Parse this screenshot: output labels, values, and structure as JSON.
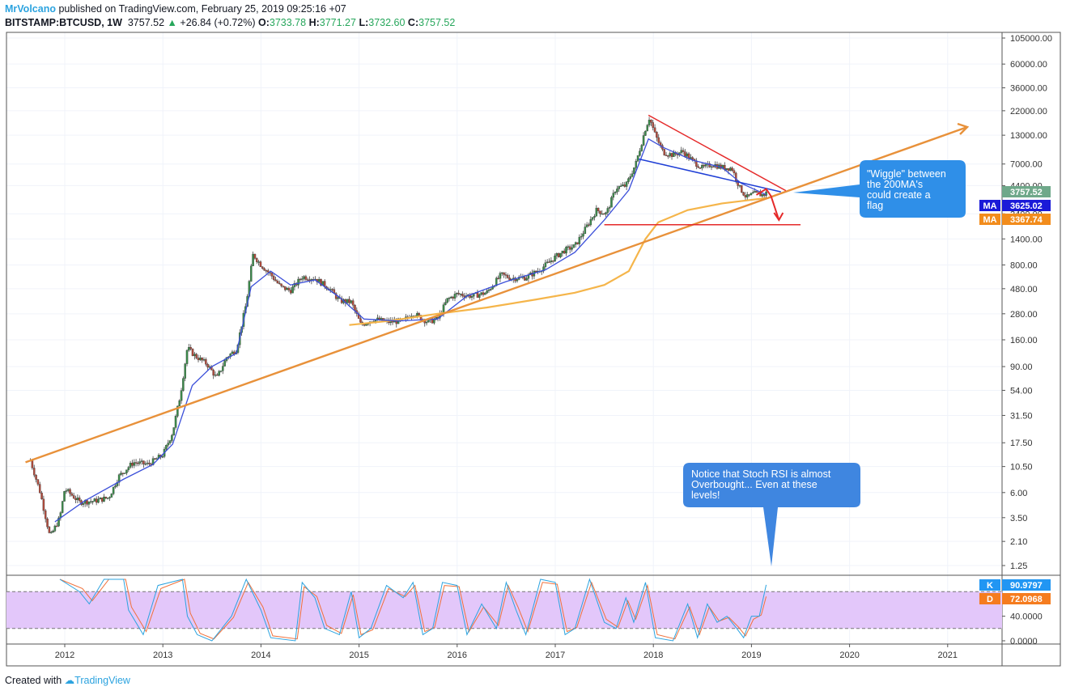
{
  "header": {
    "author": "MrVolcano",
    "published": " published on TradingView.com, February 25, 2019 09:25:16 +07",
    "symbol": "BITSTAMP:BTCUSD, 1W",
    "last": "3757.52",
    "change": "+26.84 (+0.72%)",
    "o_label": "O:",
    "o_value": "3733.78",
    "h_label": "H:",
    "h_value": "3771.27",
    "l_label": "L:",
    "l_value": "3732.60",
    "c_label": "C:",
    "c_value": "3757.52"
  },
  "footer": {
    "created_with": "Created with",
    "brand": "TradingView"
  },
  "colors": {
    "up_candle": "#3b8a4a",
    "down_candle": "#b04a3c",
    "ma_fast": "#3b4fd9",
    "ma_slow": "#f5b54a",
    "trendline": "#e8913a",
    "resistance": "#e52a2a",
    "support_blue": "#1f3fd6",
    "callout": "#2f8fe8",
    "stoch_band": "#e3c7fa",
    "stoch_k": "#2ca3df",
    "stoch_d": "#f0703a"
  },
  "price_tags": {
    "last": {
      "label": "",
      "value": "3757.52",
      "color": "#6fa88a"
    },
    "ma_fast": {
      "label": "MA",
      "value": "3625.02",
      "color": "#1a1ad8"
    },
    "ma_slow": {
      "label": "MA",
      "value": "3367.74",
      "color": "#f28c1c"
    }
  },
  "stoch_tags": {
    "k": {
      "label": "K",
      "value": "90.9797",
      "color": "#2196f3"
    },
    "d": {
      "label": "D",
      "value": "72.0968",
      "color": "#f57c1f"
    }
  },
  "annotations": {
    "wiggle": [
      "\"Wiggle\" between",
      "the 200MA's",
      "could create a",
      "flag"
    ],
    "stoch": [
      "Notice that Stoch RSI is almost",
      "Overbought... Even at these",
      "levels!"
    ]
  },
  "chart_data": [
    {
      "type": "candlestick",
      "title": "BITSTAMP:BTCUSD, 1W",
      "scale": "log",
      "y_ticks": [
        "105000.00",
        "60000.00",
        "36000.00",
        "22000.00",
        "13000.00",
        "7000.00",
        "4400.00",
        "2400.00",
        "1400.00",
        "800.00",
        "480.00",
        "280.00",
        "160.00",
        "90.00",
        "54.00",
        "31.50",
        "17.50",
        "10.50",
        "6.00",
        "3.50",
        "2.10",
        "1.25"
      ],
      "x_ticks": [
        "2012",
        "2013",
        "2014",
        "2015",
        "2016",
        "2017",
        "2018",
        "2019",
        "2020",
        "2021"
      ],
      "ylim": [
        1,
        120000
      ],
      "grid": true,
      "price_path": [
        {
          "x": 2011.65,
          "y": 12
        },
        {
          "x": 2011.75,
          "y": 6
        },
        {
          "x": 2011.85,
          "y": 2.3
        },
        {
          "x": 2011.95,
          "y": 3.5
        },
        {
          "x": 2012.0,
          "y": 6.5
        },
        {
          "x": 2012.15,
          "y": 4.9
        },
        {
          "x": 2012.3,
          "y": 5.0
        },
        {
          "x": 2012.45,
          "y": 5.4
        },
        {
          "x": 2012.55,
          "y": 8.5
        },
        {
          "x": 2012.7,
          "y": 11.5
        },
        {
          "x": 2012.85,
          "y": 11
        },
        {
          "x": 2013.0,
          "y": 13.5
        },
        {
          "x": 2013.1,
          "y": 22
        },
        {
          "x": 2013.18,
          "y": 50
        },
        {
          "x": 2013.25,
          "y": 135
        },
        {
          "x": 2013.32,
          "y": 115
        },
        {
          "x": 2013.45,
          "y": 95
        },
        {
          "x": 2013.55,
          "y": 70
        },
        {
          "x": 2013.65,
          "y": 110
        },
        {
          "x": 2013.75,
          "y": 130
        },
        {
          "x": 2013.85,
          "y": 350
        },
        {
          "x": 2013.92,
          "y": 1000
        },
        {
          "x": 2014.0,
          "y": 800
        },
        {
          "x": 2014.1,
          "y": 650
        },
        {
          "x": 2014.2,
          "y": 500
        },
        {
          "x": 2014.3,
          "y": 460
        },
        {
          "x": 2014.42,
          "y": 620
        },
        {
          "x": 2014.55,
          "y": 600
        },
        {
          "x": 2014.7,
          "y": 480
        },
        {
          "x": 2014.8,
          "y": 370
        },
        {
          "x": 2014.92,
          "y": 360
        },
        {
          "x": 2015.02,
          "y": 220
        },
        {
          "x": 2015.15,
          "y": 250
        },
        {
          "x": 2015.3,
          "y": 235
        },
        {
          "x": 2015.45,
          "y": 240
        },
        {
          "x": 2015.55,
          "y": 285
        },
        {
          "x": 2015.7,
          "y": 235
        },
        {
          "x": 2015.8,
          "y": 250
        },
        {
          "x": 2015.9,
          "y": 380
        },
        {
          "x": 2016.0,
          "y": 430
        },
        {
          "x": 2016.15,
          "y": 410
        },
        {
          "x": 2016.3,
          "y": 440
        },
        {
          "x": 2016.45,
          "y": 650
        },
        {
          "x": 2016.55,
          "y": 600
        },
        {
          "x": 2016.7,
          "y": 610
        },
        {
          "x": 2016.85,
          "y": 730
        },
        {
          "x": 2017.0,
          "y": 950
        },
        {
          "x": 2017.1,
          "y": 1100
        },
        {
          "x": 2017.2,
          "y": 1200
        },
        {
          "x": 2017.3,
          "y": 1700
        },
        {
          "x": 2017.42,
          "y": 2600
        },
        {
          "x": 2017.52,
          "y": 2400
        },
        {
          "x": 2017.62,
          "y": 4200
        },
        {
          "x": 2017.72,
          "y": 4400
        },
        {
          "x": 2017.82,
          "y": 7000
        },
        {
          "x": 2017.92,
          "y": 15000
        },
        {
          "x": 2017.96,
          "y": 19000
        },
        {
          "x": 2018.02,
          "y": 13000
        },
        {
          "x": 2018.1,
          "y": 9000
        },
        {
          "x": 2018.2,
          "y": 8500
        },
        {
          "x": 2018.3,
          "y": 9200
        },
        {
          "x": 2018.4,
          "y": 7500
        },
        {
          "x": 2018.5,
          "y": 6400
        },
        {
          "x": 2018.6,
          "y": 7000
        },
        {
          "x": 2018.7,
          "y": 6500
        },
        {
          "x": 2018.8,
          "y": 6400
        },
        {
          "x": 2018.88,
          "y": 4200
        },
        {
          "x": 2018.95,
          "y": 3400
        },
        {
          "x": 2019.02,
          "y": 3700
        },
        {
          "x": 2019.12,
          "y": 3600
        },
        {
          "x": 2019.15,
          "y": 3757.52
        }
      ],
      "ma_fast_path": [
        {
          "x": 2011.9,
          "y": 3.2
        },
        {
          "x": 2012.2,
          "y": 5.0
        },
        {
          "x": 2012.6,
          "y": 8.0
        },
        {
          "x": 2012.9,
          "y": 11
        },
        {
          "x": 2013.1,
          "y": 17
        },
        {
          "x": 2013.3,
          "y": 60
        },
        {
          "x": 2013.5,
          "y": 90
        },
        {
          "x": 2013.75,
          "y": 120
        },
        {
          "x": 2013.9,
          "y": 500
        },
        {
          "x": 2014.1,
          "y": 700
        },
        {
          "x": 2014.3,
          "y": 520
        },
        {
          "x": 2014.55,
          "y": 580
        },
        {
          "x": 2014.8,
          "y": 400
        },
        {
          "x": 2015.05,
          "y": 250
        },
        {
          "x": 2015.4,
          "y": 240
        },
        {
          "x": 2015.8,
          "y": 250
        },
        {
          "x": 2016.1,
          "y": 410
        },
        {
          "x": 2016.5,
          "y": 560
        },
        {
          "x": 2016.9,
          "y": 720
        },
        {
          "x": 2017.2,
          "y": 1050
        },
        {
          "x": 2017.5,
          "y": 2100
        },
        {
          "x": 2017.75,
          "y": 4000
        },
        {
          "x": 2017.95,
          "y": 12000
        },
        {
          "x": 2018.1,
          "y": 10000
        },
        {
          "x": 2018.4,
          "y": 7600
        },
        {
          "x": 2018.7,
          "y": 6500
        },
        {
          "x": 2018.9,
          "y": 4600
        },
        {
          "x": 2019.15,
          "y": 3625.02
        }
      ],
      "ma_slow_path": [
        {
          "x": 2014.9,
          "y": 220
        },
        {
          "x": 2015.3,
          "y": 240
        },
        {
          "x": 2015.8,
          "y": 280
        },
        {
          "x": 2016.3,
          "y": 320
        },
        {
          "x": 2016.8,
          "y": 380
        },
        {
          "x": 2017.2,
          "y": 440
        },
        {
          "x": 2017.5,
          "y": 520
        },
        {
          "x": 2017.75,
          "y": 700
        },
        {
          "x": 2017.92,
          "y": 1400
        },
        {
          "x": 2018.05,
          "y": 2000
        },
        {
          "x": 2018.35,
          "y": 2600
        },
        {
          "x": 2018.7,
          "y": 3000
        },
        {
          "x": 2019.15,
          "y": 3367.74
        }
      ],
      "trendline": {
        "from": {
          "x": 2011.6,
          "y": 11.5
        },
        "to": {
          "x": 2021.2,
          "y": 15500
        }
      },
      "resistance": {
        "from": {
          "x": 2017.95,
          "y": 20000
        },
        "to": {
          "x": 2019.35,
          "y": 3950
        }
      },
      "support_level": {
        "from": {
          "x": 2017.5,
          "y": 1900
        },
        "to": {
          "x": 2019.5,
          "y": 1900
        }
      },
      "blue_line": {
        "from": {
          "x": 2017.85,
          "y": 7800
        },
        "to": {
          "x": 2019.3,
          "y": 3850
        }
      },
      "forecast_arrow": [
        {
          "x": 2019.05,
          "y": 3600
        },
        {
          "x": 2019.15,
          "y": 4100
        },
        {
          "x": 2019.2,
          "y": 3500
        },
        {
          "x": 2019.28,
          "y": 2100
        }
      ],
      "last_value": 3757.52,
      "ma_fast_value": 3625.02,
      "ma_slow_value": 3367.74
    },
    {
      "type": "line",
      "title": "Stoch RSI",
      "y_ticks": [
        "40.0000",
        "0.0000"
      ],
      "ylim": [
        0,
        100
      ],
      "band": [
        20,
        80
      ],
      "x_ticks": [
        "2012",
        "2013",
        "2014",
        "2015",
        "2016",
        "2017",
        "2018",
        "2019",
        "2020",
        "2021"
      ],
      "k_value": 90.9797,
      "d_value": 72.0968,
      "k_path": [
        {
          "x": 2011.95,
          "y": 100
        },
        {
          "x": 2012.15,
          "y": 80
        },
        {
          "x": 2012.25,
          "y": 60
        },
        {
          "x": 2012.4,
          "y": 100
        },
        {
          "x": 2012.6,
          "y": 100
        },
        {
          "x": 2012.65,
          "y": 50
        },
        {
          "x": 2012.8,
          "y": 10
        },
        {
          "x": 2012.95,
          "y": 90
        },
        {
          "x": 2013.2,
          "y": 100
        },
        {
          "x": 2013.25,
          "y": 40
        },
        {
          "x": 2013.35,
          "y": 10
        },
        {
          "x": 2013.5,
          "y": 0
        },
        {
          "x": 2013.7,
          "y": 40
        },
        {
          "x": 2013.85,
          "y": 100
        },
        {
          "x": 2014.0,
          "y": 50
        },
        {
          "x": 2014.1,
          "y": 5
        },
        {
          "x": 2014.35,
          "y": 0
        },
        {
          "x": 2014.42,
          "y": 95
        },
        {
          "x": 2014.55,
          "y": 70
        },
        {
          "x": 2014.65,
          "y": 20
        },
        {
          "x": 2014.8,
          "y": 10
        },
        {
          "x": 2014.92,
          "y": 80
        },
        {
          "x": 2015.0,
          "y": 5
        },
        {
          "x": 2015.12,
          "y": 20
        },
        {
          "x": 2015.28,
          "y": 90
        },
        {
          "x": 2015.45,
          "y": 70
        },
        {
          "x": 2015.55,
          "y": 95
        },
        {
          "x": 2015.65,
          "y": 10
        },
        {
          "x": 2015.75,
          "y": 20
        },
        {
          "x": 2015.85,
          "y": 95
        },
        {
          "x": 2016.0,
          "y": 90
        },
        {
          "x": 2016.1,
          "y": 10
        },
        {
          "x": 2016.25,
          "y": 60
        },
        {
          "x": 2016.4,
          "y": 20
        },
        {
          "x": 2016.5,
          "y": 95
        },
        {
          "x": 2016.6,
          "y": 50
        },
        {
          "x": 2016.7,
          "y": 10
        },
        {
          "x": 2016.85,
          "y": 100
        },
        {
          "x": 2017.0,
          "y": 95
        },
        {
          "x": 2017.1,
          "y": 10
        },
        {
          "x": 2017.2,
          "y": 20
        },
        {
          "x": 2017.35,
          "y": 100
        },
        {
          "x": 2017.5,
          "y": 30
        },
        {
          "x": 2017.62,
          "y": 20
        },
        {
          "x": 2017.72,
          "y": 70
        },
        {
          "x": 2017.8,
          "y": 30
        },
        {
          "x": 2017.92,
          "y": 95
        },
        {
          "x": 2018.02,
          "y": 5
        },
        {
          "x": 2018.2,
          "y": 0
        },
        {
          "x": 2018.35,
          "y": 60
        },
        {
          "x": 2018.45,
          "y": 5
        },
        {
          "x": 2018.55,
          "y": 60
        },
        {
          "x": 2018.65,
          "y": 30
        },
        {
          "x": 2018.75,
          "y": 40
        },
        {
          "x": 2018.85,
          "y": 20
        },
        {
          "x": 2018.92,
          "y": 5
        },
        {
          "x": 2019.0,
          "y": 40
        },
        {
          "x": 2019.08,
          "y": 40
        },
        {
          "x": 2019.15,
          "y": 90.9797
        }
      ],
      "d_path": [
        {
          "x": 2011.95,
          "y": 100
        },
        {
          "x": 2012.18,
          "y": 85
        },
        {
          "x": 2012.28,
          "y": 65
        },
        {
          "x": 2012.45,
          "y": 100
        },
        {
          "x": 2012.62,
          "y": 100
        },
        {
          "x": 2012.68,
          "y": 55
        },
        {
          "x": 2012.83,
          "y": 15
        },
        {
          "x": 2012.98,
          "y": 85
        },
        {
          "x": 2013.22,
          "y": 100
        },
        {
          "x": 2013.28,
          "y": 45
        },
        {
          "x": 2013.38,
          "y": 12
        },
        {
          "x": 2013.52,
          "y": 3
        },
        {
          "x": 2013.72,
          "y": 38
        },
        {
          "x": 2013.87,
          "y": 95
        },
        {
          "x": 2014.02,
          "y": 55
        },
        {
          "x": 2014.12,
          "y": 8
        },
        {
          "x": 2014.37,
          "y": 3
        },
        {
          "x": 2014.44,
          "y": 88
        },
        {
          "x": 2014.57,
          "y": 72
        },
        {
          "x": 2014.67,
          "y": 25
        },
        {
          "x": 2014.82,
          "y": 12
        },
        {
          "x": 2014.94,
          "y": 75
        },
        {
          "x": 2015.02,
          "y": 10
        },
        {
          "x": 2015.14,
          "y": 18
        },
        {
          "x": 2015.3,
          "y": 85
        },
        {
          "x": 2015.47,
          "y": 72
        },
        {
          "x": 2015.57,
          "y": 90
        },
        {
          "x": 2015.67,
          "y": 15
        },
        {
          "x": 2015.77,
          "y": 22
        },
        {
          "x": 2015.87,
          "y": 90
        },
        {
          "x": 2016.02,
          "y": 88
        },
        {
          "x": 2016.12,
          "y": 15
        },
        {
          "x": 2016.27,
          "y": 55
        },
        {
          "x": 2016.42,
          "y": 25
        },
        {
          "x": 2016.52,
          "y": 90
        },
        {
          "x": 2016.62,
          "y": 55
        },
        {
          "x": 2016.72,
          "y": 15
        },
        {
          "x": 2016.87,
          "y": 95
        },
        {
          "x": 2017.02,
          "y": 92
        },
        {
          "x": 2017.12,
          "y": 15
        },
        {
          "x": 2017.22,
          "y": 22
        },
        {
          "x": 2017.37,
          "y": 95
        },
        {
          "x": 2017.52,
          "y": 35
        },
        {
          "x": 2017.64,
          "y": 22
        },
        {
          "x": 2017.74,
          "y": 65
        },
        {
          "x": 2017.82,
          "y": 35
        },
        {
          "x": 2017.94,
          "y": 90
        },
        {
          "x": 2018.04,
          "y": 10
        },
        {
          "x": 2018.22,
          "y": 3
        },
        {
          "x": 2018.37,
          "y": 55
        },
        {
          "x": 2018.47,
          "y": 10
        },
        {
          "x": 2018.57,
          "y": 55
        },
        {
          "x": 2018.67,
          "y": 32
        },
        {
          "x": 2018.77,
          "y": 38
        },
        {
          "x": 2018.87,
          "y": 22
        },
        {
          "x": 2018.94,
          "y": 8
        },
        {
          "x": 2019.02,
          "y": 35
        },
        {
          "x": 2019.1,
          "y": 42
        },
        {
          "x": 2019.15,
          "y": 72.0968
        }
      ]
    }
  ]
}
